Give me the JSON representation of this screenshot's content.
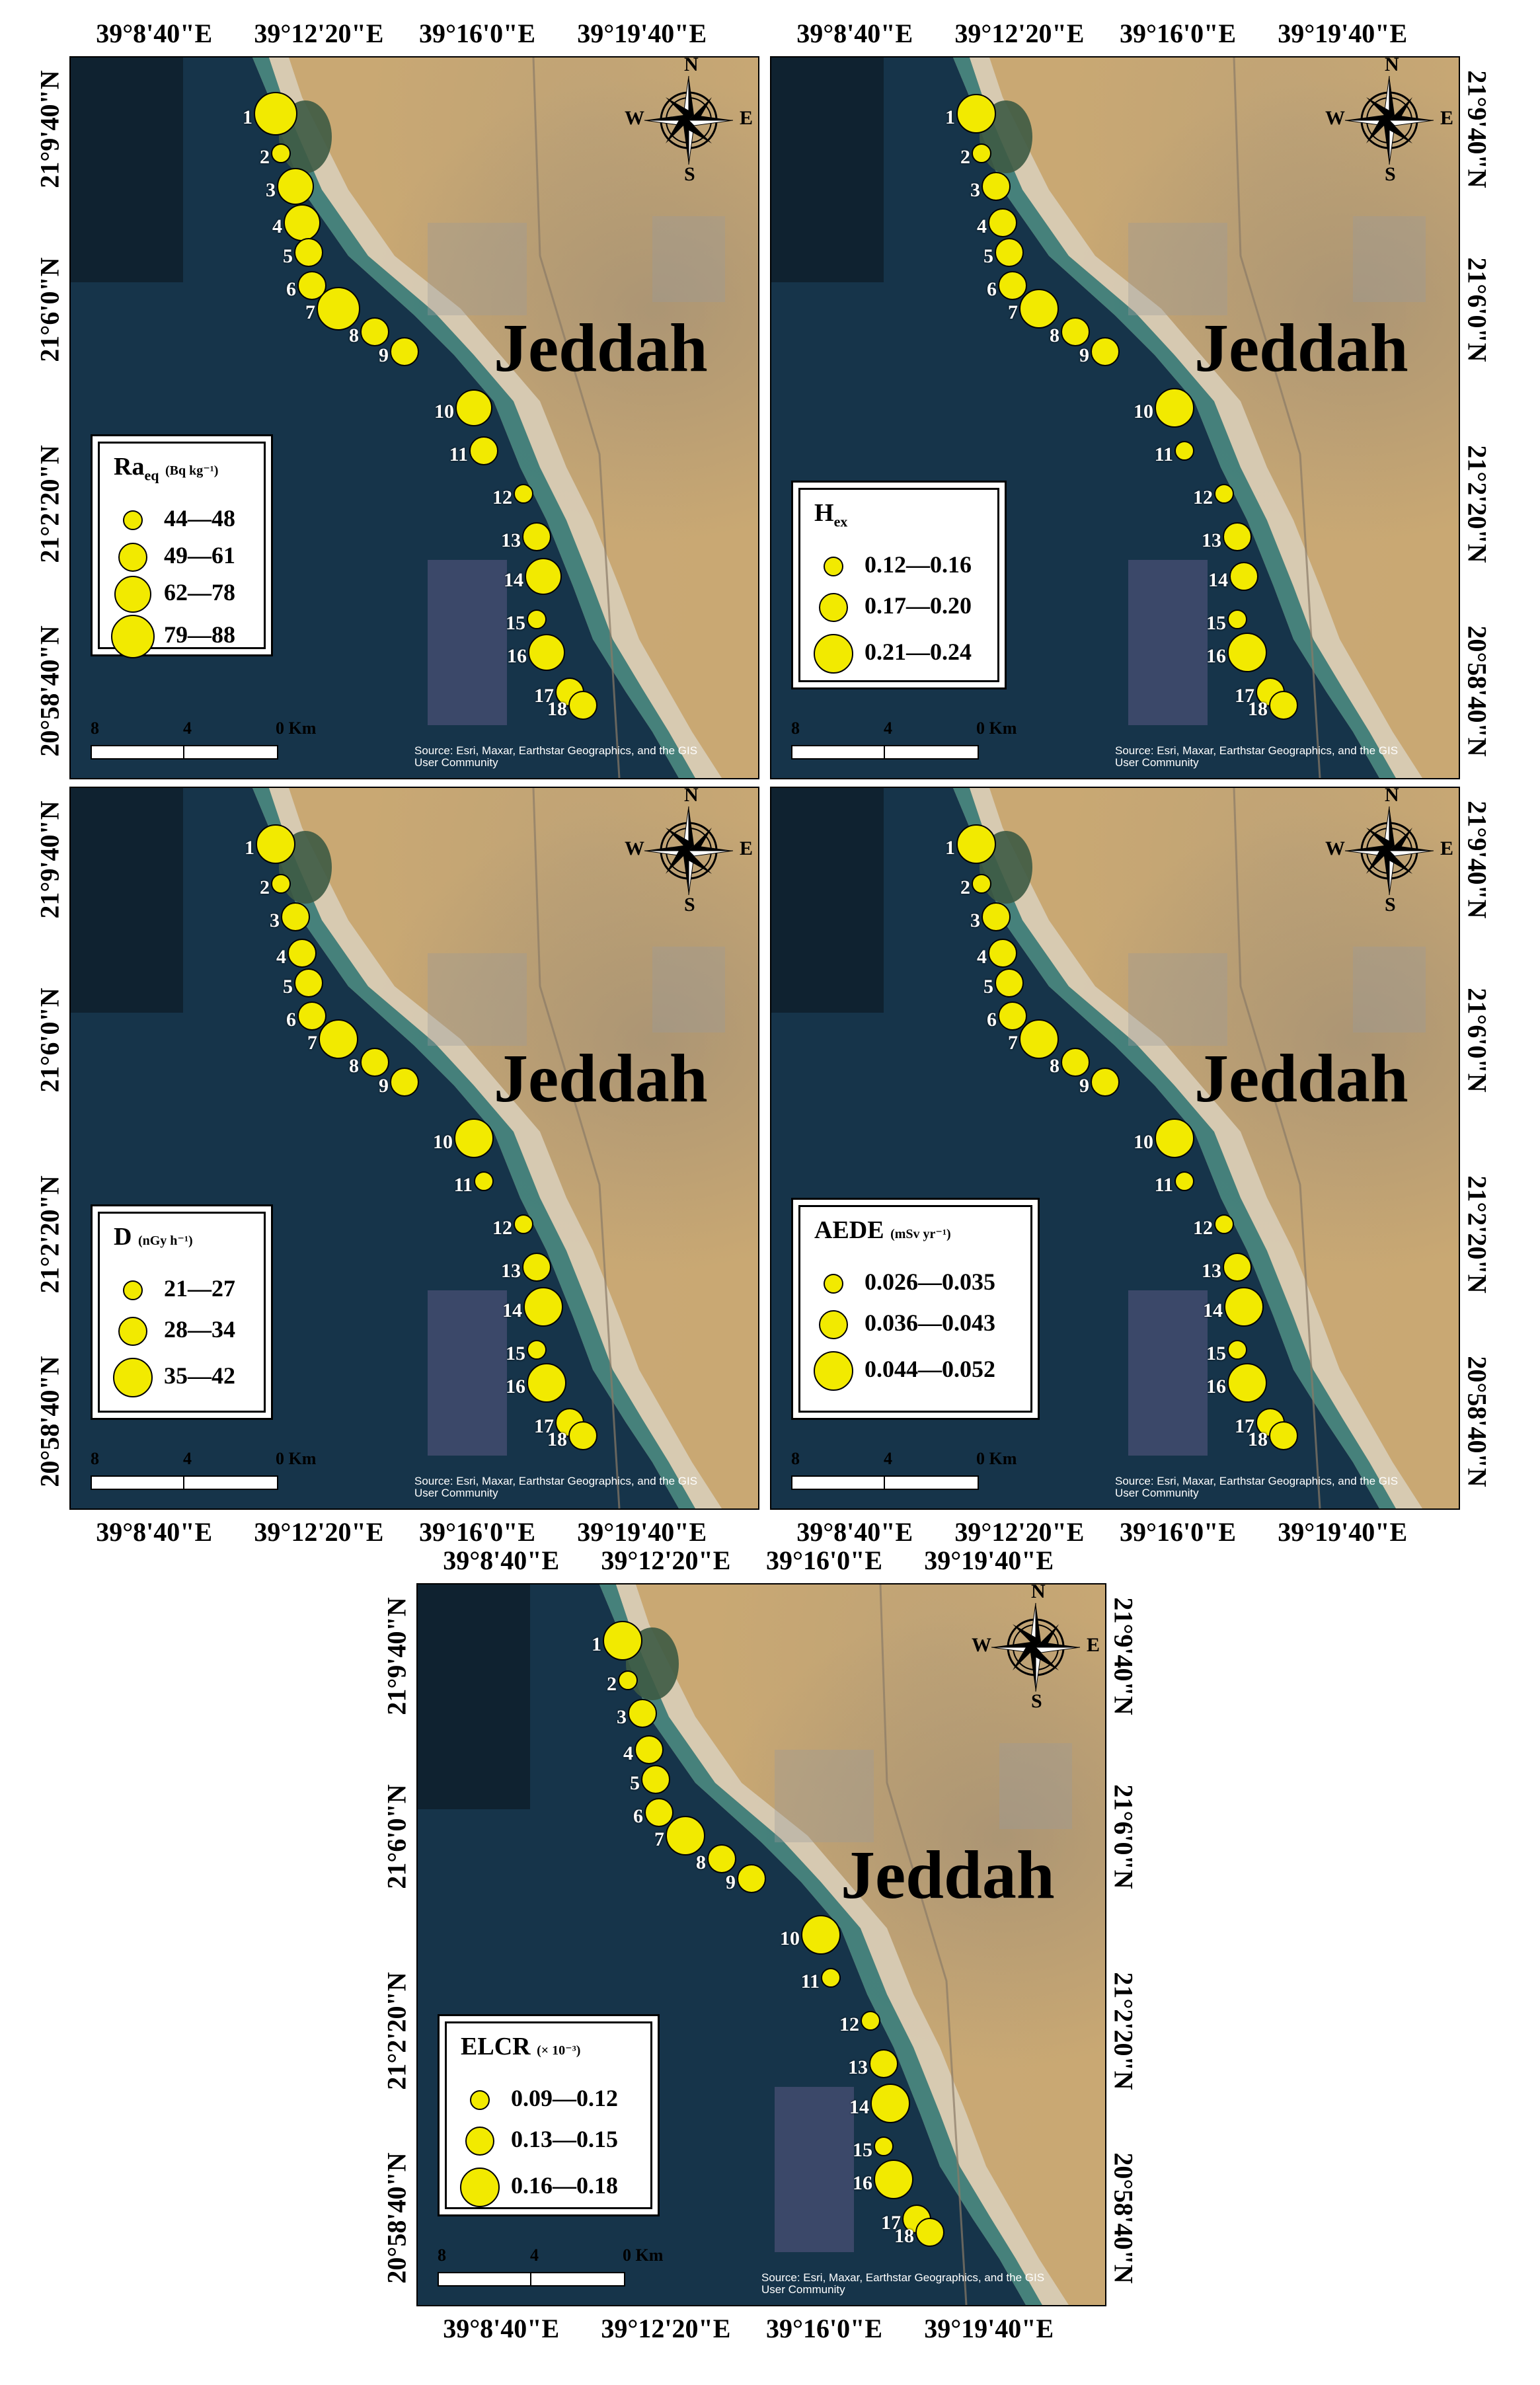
{
  "common": {
    "city": "Jeddah",
    "lon_ticks": [
      "39°8'40\"E",
      "39°12'20\"E",
      "39°16'0\"E",
      "39°19'40\"E"
    ],
    "lat_ticks": [
      "21°9'40\"N",
      "21°6'0\"N",
      "21°2'20\"N",
      "20°58'40\"N"
    ],
    "compass": {
      "n": "N",
      "s": "S",
      "e": "E",
      "w": "W",
      "icon": "compass-rose-icon"
    },
    "scale": {
      "left": "8",
      "mid": "4",
      "right": "0 Km"
    },
    "attribution_line1": "Source: Esri, Maxar, Earthstar Geographics, and the GIS",
    "attribution_line2": "User Community",
    "site_labels": [
      "1",
      "2",
      "3",
      "4",
      "5",
      "6",
      "7",
      "8",
      "9",
      "10",
      "11",
      "12",
      "13",
      "14",
      "15",
      "16",
      "17",
      "18"
    ],
    "colors": {
      "symbol_fill": "#f2ea00",
      "symbol_border": "#000000",
      "land": "#c9a873",
      "sea": "#16344a"
    }
  },
  "panels": [
    {
      "legend": {
        "title": "Ra",
        "title_sub": "eq",
        "unit": "(Bq kg⁻¹)",
        "classes": [
          "44—48",
          "49—61",
          "62—78",
          "79—88"
        ]
      },
      "site_classes": [
        4,
        1,
        3,
        3,
        2,
        2,
        4,
        2,
        2,
        3,
        2,
        1,
        2,
        3,
        1,
        3,
        2,
        2
      ]
    },
    {
      "legend": {
        "title": "H",
        "title_sub": "ex",
        "unit": "",
        "classes": [
          "0.12—0.16",
          "0.17—0.20",
          "0.21—0.24"
        ]
      },
      "site_classes": [
        3,
        1,
        2,
        2,
        2,
        2,
        3,
        2,
        2,
        3,
        1,
        1,
        2,
        2,
        1,
        3,
        2,
        2
      ]
    },
    {
      "legend": {
        "title": "D",
        "title_sub": "",
        "unit": "(nGy h⁻¹)",
        "classes": [
          "21—27",
          "28—34",
          "35—42"
        ]
      },
      "site_classes": [
        3,
        1,
        2,
        2,
        2,
        2,
        3,
        2,
        2,
        3,
        1,
        1,
        2,
        3,
        1,
        3,
        2,
        2
      ]
    },
    {
      "legend": {
        "title": "AEDE",
        "title_sub": "",
        "unit": "(mSv yr⁻¹)",
        "classes": [
          "0.026—0.035",
          "0.036—0.043",
          "0.044—0.052"
        ]
      },
      "site_classes": [
        3,
        1,
        2,
        2,
        2,
        2,
        3,
        2,
        2,
        3,
        1,
        1,
        2,
        3,
        1,
        3,
        2,
        2
      ]
    },
    {
      "legend": {
        "title": "ELCR",
        "title_sub": "",
        "unit": "(× 10⁻³)",
        "classes": [
          "0.09—0.12",
          "0.13—0.15",
          "0.16—0.18"
        ]
      },
      "site_classes": [
        3,
        1,
        2,
        2,
        2,
        2,
        3,
        2,
        2,
        3,
        1,
        1,
        2,
        3,
        1,
        3,
        2,
        2
      ]
    }
  ]
}
